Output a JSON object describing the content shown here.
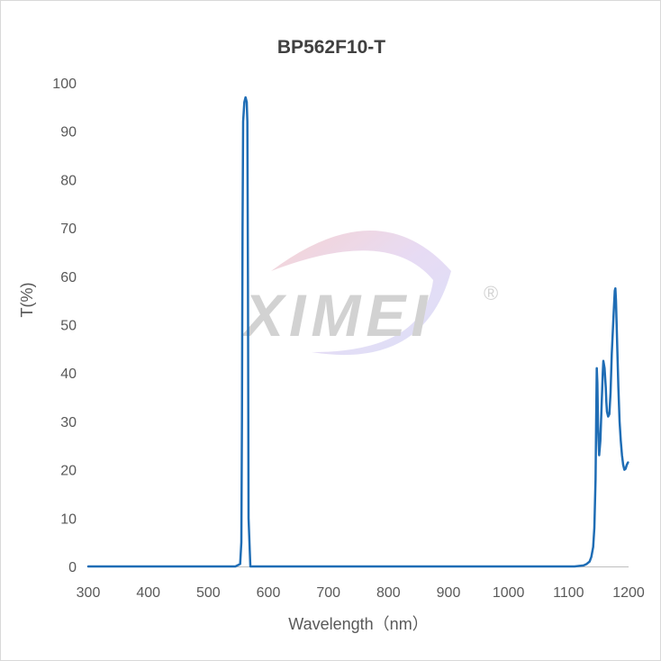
{
  "watermark": {
    "text": "XIMEI",
    "mark": "®"
  },
  "chart_data": {
    "type": "line",
    "title": "BP562F10-T",
    "xlabel": "Wavelength（nm）",
    "ylabel": "T(%)",
    "xlim": [
      300,
      1200
    ],
    "ylim": [
      0,
      100
    ],
    "xticks": [
      300,
      400,
      500,
      600,
      700,
      800,
      900,
      1000,
      1100,
      1200
    ],
    "yticks": [
      0,
      10,
      20,
      30,
      40,
      50,
      60,
      70,
      80,
      90,
      100
    ],
    "grid": false,
    "series": [
      {
        "color": "#1f6db5",
        "x": [
          300,
          545,
          553,
          555,
          556,
          557,
          558,
          560,
          562,
          564,
          565,
          566,
          567,
          570,
          600,
          800,
          1000,
          1110,
          1125,
          1130,
          1135,
          1138,
          1141,
          1143,
          1145,
          1146,
          1147,
          1148,
          1149,
          1150,
          1151,
          1153,
          1155,
          1157,
          1158,
          1160,
          1162,
          1163,
          1164,
          1166,
          1168,
          1170,
          1172,
          1175,
          1177,
          1178,
          1179,
          1181,
          1183,
          1185,
          1187,
          1189,
          1191,
          1193,
          1195,
          1197,
          1199
        ],
        "y": [
          0,
          0,
          0.5,
          5,
          30,
          70,
          92,
          96,
          97,
          96,
          92,
          60,
          10,
          0,
          0,
          0,
          0,
          0,
          0.2,
          0.5,
          1,
          2,
          4,
          8,
          18,
          30,
          41,
          38,
          30,
          26,
          23,
          26,
          33,
          40,
          42.5,
          41,
          37,
          34,
          32,
          31,
          31.5,
          36,
          44,
          52,
          57,
          57.5,
          55,
          46,
          37,
          30,
          26,
          23,
          21,
          20,
          20.2,
          21,
          21.5
        ]
      }
    ]
  }
}
